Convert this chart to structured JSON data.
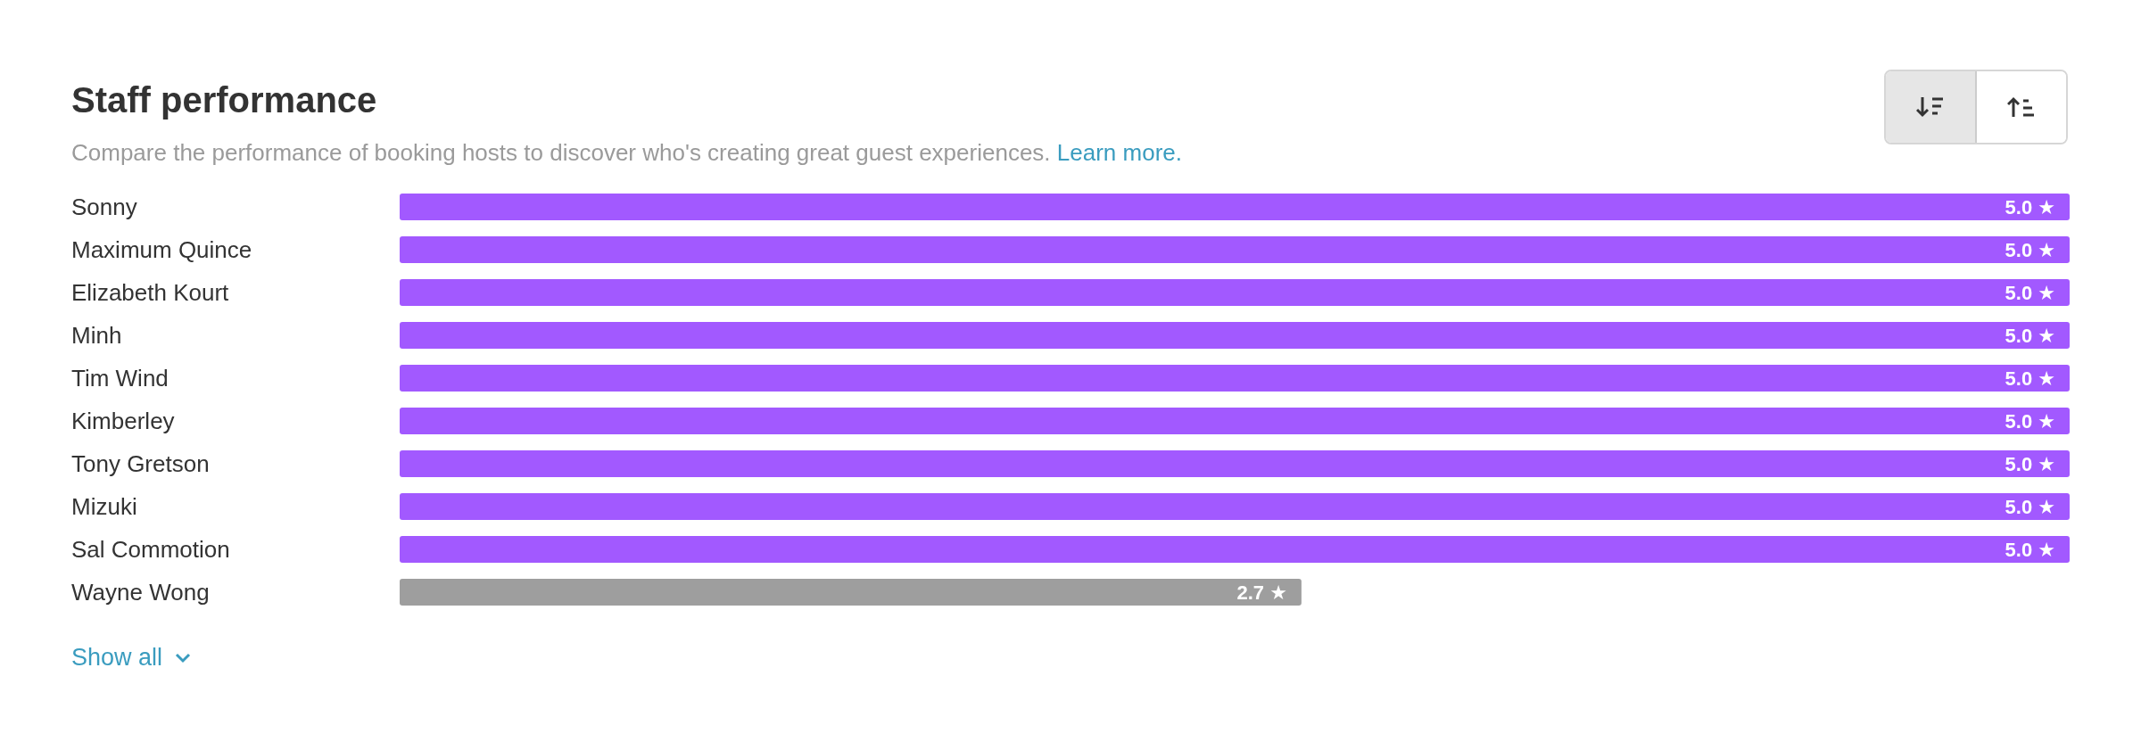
{
  "chart_data": {
    "type": "bar",
    "orientation": "horizontal",
    "title": "Staff performance",
    "subtitle": "Compare the performance of booking hosts to discover who's creating great guest experiences.",
    "annotations": [
      "Learn more.",
      "Show all"
    ],
    "categories": [
      "Sonny",
      "Maximum Quince",
      "Elizabeth Kourt",
      "Minh",
      "Tim Wind",
      "Kimberley",
      "Tony Gretson",
      "Mizuki",
      "Sal Commotion",
      "Wayne Wong"
    ],
    "values": [
      5.0,
      5.0,
      5.0,
      5.0,
      5.0,
      5.0,
      5.0,
      5.0,
      5.0,
      2.7
    ],
    "colors": [
      "#a259ff",
      "#a259ff",
      "#a259ff",
      "#a259ff",
      "#a259ff",
      "#a259ff",
      "#a259ff",
      "#a259ff",
      "#a259ff",
      "#9e9e9e"
    ],
    "value_labels": [
      "5.0 ★",
      "5.0 ★",
      "5.0 ★",
      "5.0 ★",
      "5.0 ★",
      "5.0 ★",
      "5.0 ★",
      "5.0 ★",
      "5.0 ★",
      "2.7 ★"
    ]
  }
}
